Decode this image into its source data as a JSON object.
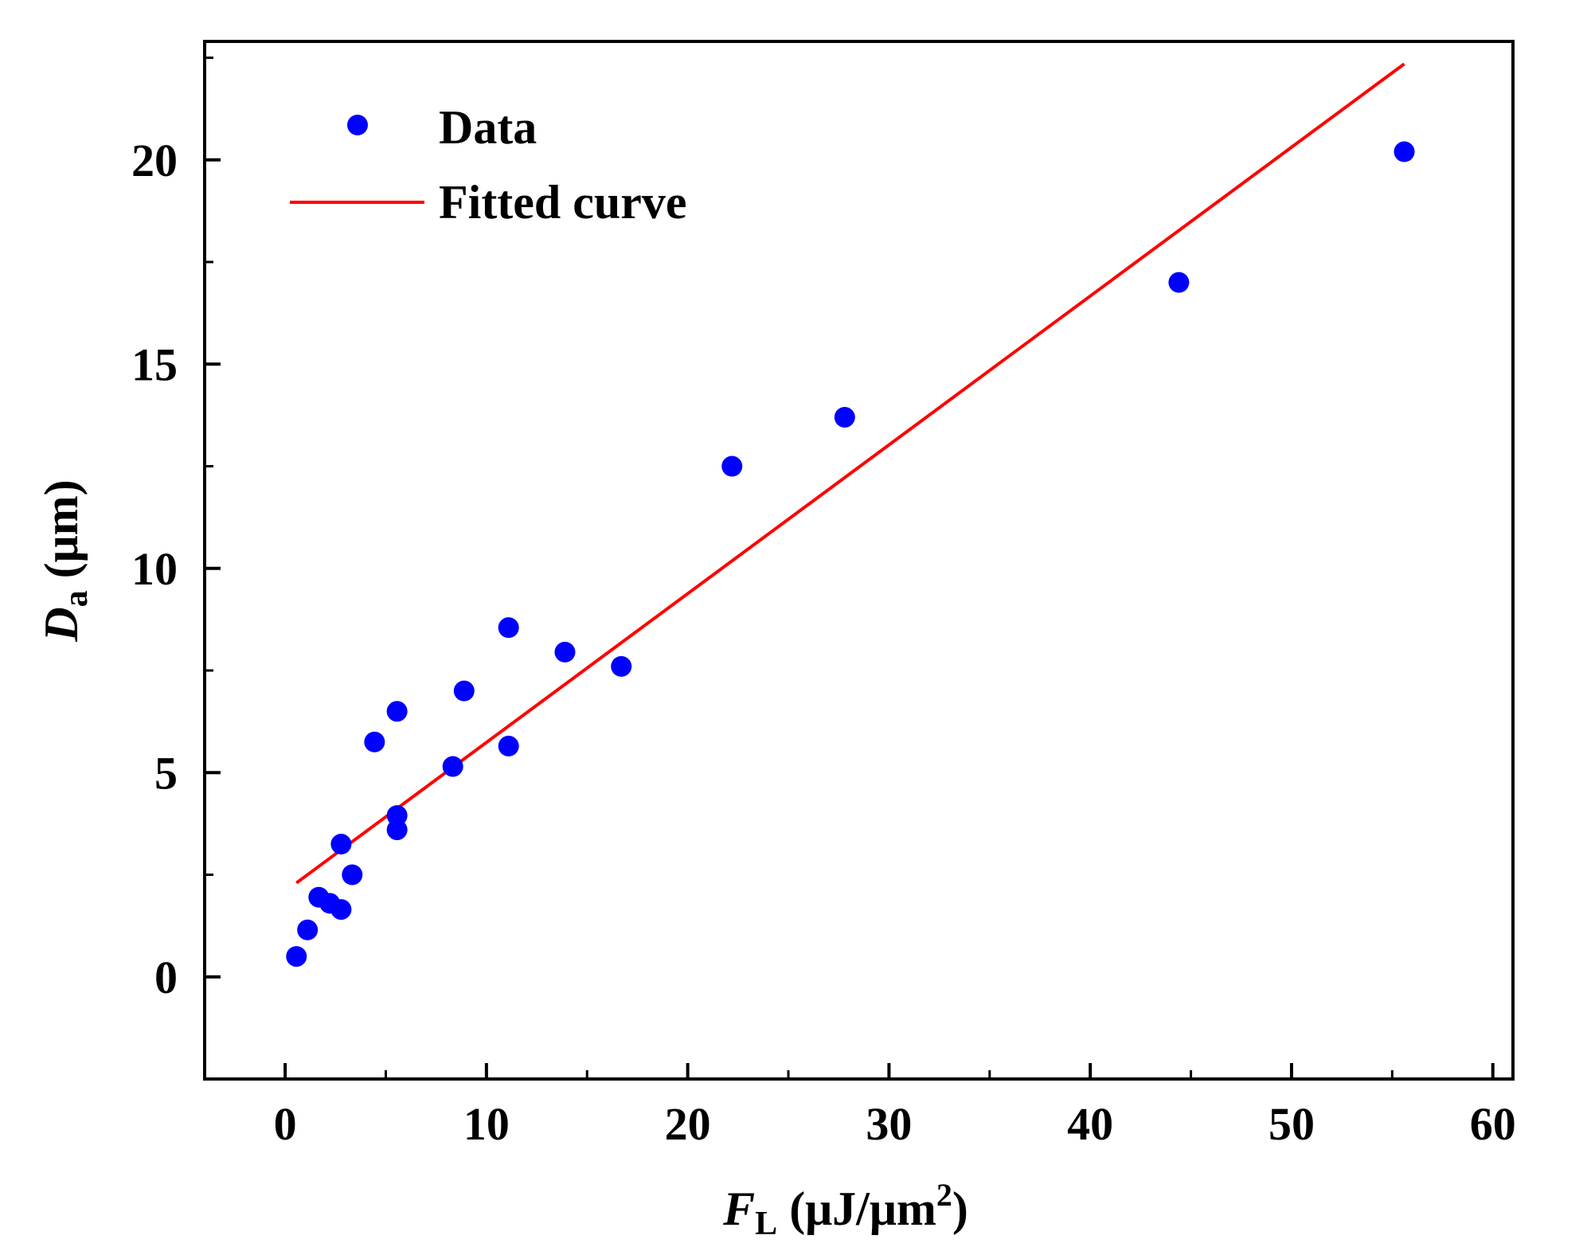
{
  "chart_data": {
    "type": "scatter",
    "title": "",
    "xlabel": {
      "symbol": "F",
      "subscript": "L",
      "units_open": " (μJ/μm",
      "units_sup": "2",
      "units_close": ")"
    },
    "ylabel": {
      "symbol": "D",
      "subscript": "a",
      "units": " (μm)"
    },
    "xlim": [
      -4,
      61
    ],
    "ylim": [
      -2.5,
      22.9
    ],
    "x_major_ticks": [
      0,
      10,
      20,
      30,
      40,
      50,
      60
    ],
    "x_tick_labels": [
      "0",
      "10",
      "20",
      "30",
      "40",
      "50",
      "60"
    ],
    "x_minor_ticks": [
      5,
      15,
      25,
      35,
      45,
      55
    ],
    "y_major_ticks": [
      0,
      5,
      10,
      15,
      20
    ],
    "y_tick_labels": [
      "0",
      "5",
      "10",
      "15",
      "20"
    ],
    "y_minor_ticks": [
      -2.5,
      2.5,
      7.5,
      12.5,
      17.5,
      22.5
    ],
    "grid": false,
    "legend_position": "top-left",
    "series": [
      {
        "name": "Data",
        "kind": "scatter",
        "color": "#0000ff",
        "x": [
          0.56,
          1.11,
          1.67,
          2.22,
          2.78,
          2.78,
          3.33,
          4.44,
          5.56,
          5.56,
          5.56,
          8.33,
          8.89,
          11.1,
          11.1,
          13.9,
          16.7,
          22.2,
          27.8,
          44.4,
          55.6
        ],
        "y": [
          0.5,
          1.15,
          1.95,
          1.8,
          1.65,
          3.25,
          2.5,
          5.75,
          6.5,
          3.95,
          3.6,
          5.15,
          7.0,
          8.55,
          5.65,
          7.95,
          7.6,
          12.5,
          13.7,
          17.0,
          20.2
        ]
      },
      {
        "name": "Fitted curve",
        "kind": "line",
        "color": "#ff0000",
        "x": [
          0.56,
          55.6
        ],
        "y": [
          2.3,
          22.35
        ]
      }
    ]
  }
}
